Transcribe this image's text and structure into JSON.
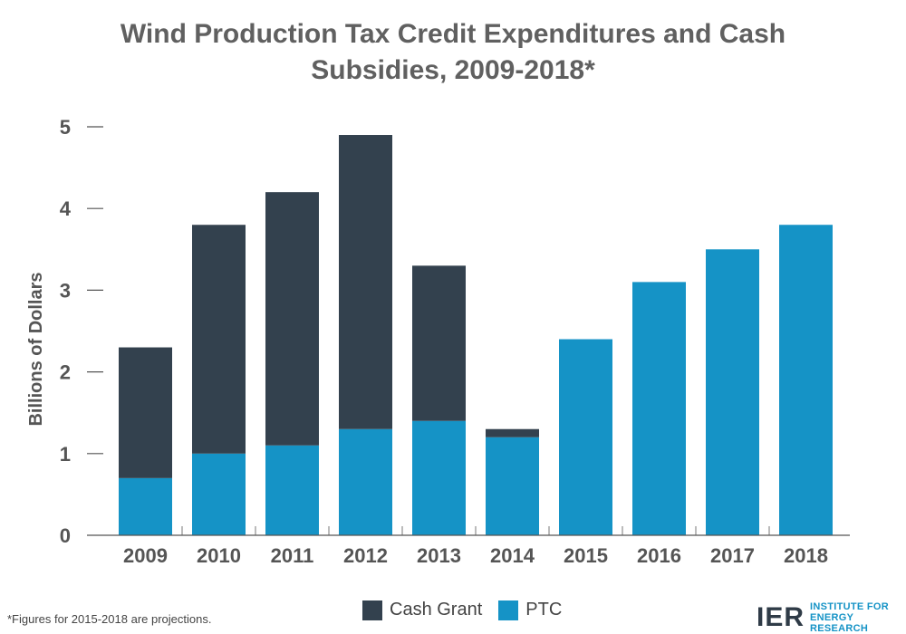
{
  "title_line1": "Wind Production Tax Credit Expenditures and Cash",
  "title_line2": "Subsidies, 2009-2018*",
  "footnote": "*Figures for 2015-2018 are projections.",
  "logo": {
    "mark": "IER",
    "line1": "INSTITUTE FOR",
    "line2": "ENERGY RESEARCH"
  },
  "colors": {
    "cash_grant": "#33414e",
    "ptc": "#1593c6",
    "axis": "#555555"
  },
  "chart_data": {
    "type": "bar",
    "stacked": true,
    "title": "Wind Production Tax Credit Expenditures and Cash Subsidies, 2009-2018*",
    "xlabel": "",
    "ylabel": "Billions of Dollars",
    "ylim": [
      0,
      5
    ],
    "yticks": [
      0,
      1,
      2,
      3,
      4,
      5
    ],
    "grid": false,
    "legend_position": "bottom",
    "categories": [
      "2009",
      "2010",
      "2011",
      "2012",
      "2013",
      "2014",
      "2015",
      "2016",
      "2017",
      "2018"
    ],
    "series": [
      {
        "name": "PTC",
        "color": "#1593c6",
        "values": [
          0.7,
          1.0,
          1.1,
          1.3,
          1.4,
          1.2,
          2.4,
          3.1,
          3.5,
          3.8
        ]
      },
      {
        "name": "Cash Grant",
        "color": "#33414e",
        "values": [
          1.6,
          2.8,
          3.1,
          3.6,
          1.9,
          0.1,
          0,
          0,
          0,
          0
        ]
      }
    ],
    "legend": [
      "Cash Grant",
      "PTC"
    ]
  }
}
